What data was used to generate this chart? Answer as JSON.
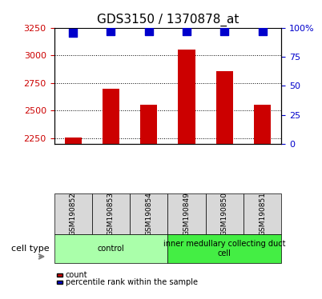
{
  "title": "GDS3150 / 1370878_at",
  "samples": [
    "GSM190852",
    "GSM190853",
    "GSM190854",
    "GSM190849",
    "GSM190850",
    "GSM190851"
  ],
  "counts": [
    2258,
    2700,
    2555,
    3055,
    2860,
    2555
  ],
  "percentile_ranks": [
    96,
    97,
    97,
    97,
    97,
    97
  ],
  "ylim_left": [
    2200,
    3250
  ],
  "ylim_right": [
    0,
    100
  ],
  "yticks_left": [
    2250,
    2500,
    2750,
    3000,
    3250
  ],
  "yticks_right": [
    0,
    25,
    50,
    75,
    100
  ],
  "ytick_labels_right": [
    "0",
    "25",
    "50",
    "75",
    "100%"
  ],
  "bar_color": "#cc0000",
  "dot_color": "#0000cc",
  "bar_bottom": 2200,
  "cell_types": [
    {
      "label": "control",
      "start": 0,
      "end": 3,
      "color": "#aaffaa"
    },
    {
      "label": "inner medullary collecting duct\ncell",
      "start": 3,
      "end": 6,
      "color": "#44ee44"
    }
  ],
  "legend_items": [
    {
      "color": "#cc0000",
      "label": "count"
    },
    {
      "color": "#0000cc",
      "label": "percentile rank within the sample"
    }
  ],
  "cell_type_label": "cell type",
  "bg_color": "#ffffff",
  "tick_color_left": "#cc0000",
  "tick_color_right": "#0000cc",
  "bar_width": 0.45,
  "dot_size": 45,
  "title_fontsize": 11,
  "axis_fontsize": 8,
  "sample_fontsize": 6.5,
  "celltype_fontsize": 7
}
